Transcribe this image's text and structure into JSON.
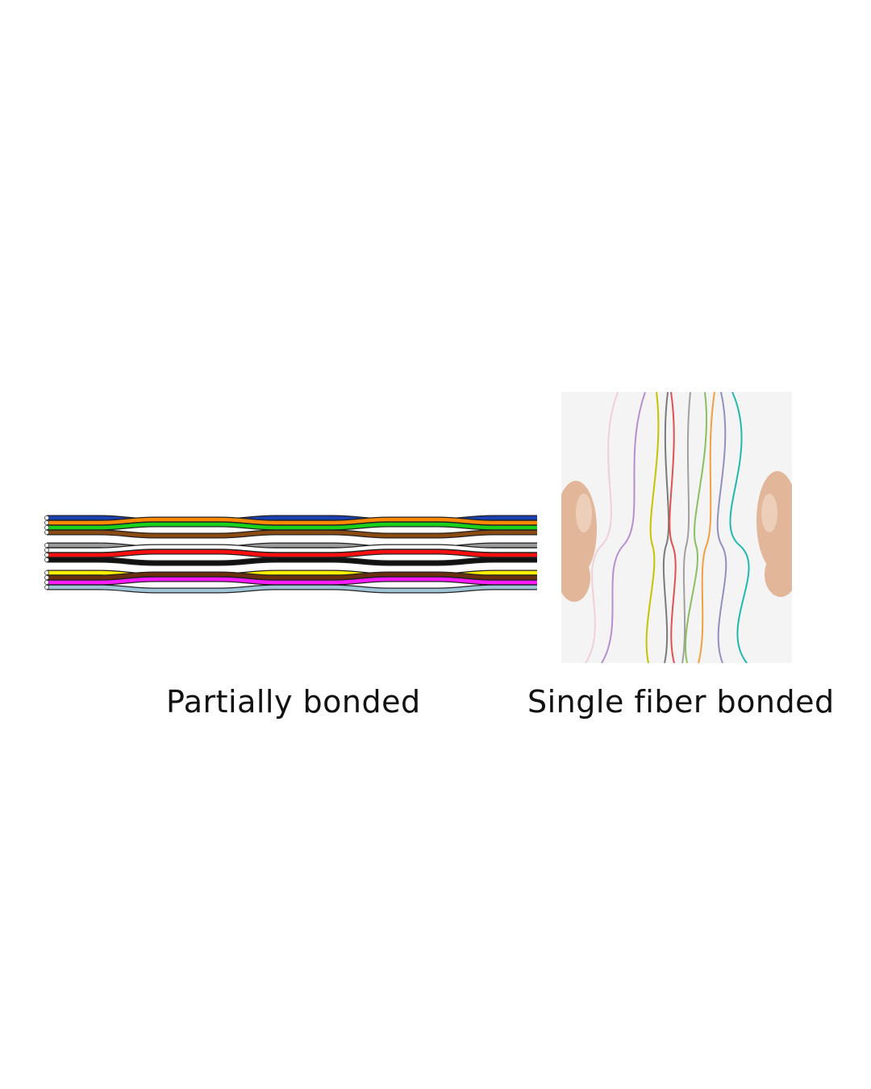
{
  "panels": {
    "partial": {
      "caption": "Partially bonded",
      "fiber_colors": [
        "#1a3fb0",
        "#ff8a00",
        "#19d11a",
        "#8a4a12",
        "#9a9a9a",
        "#ffffff",
        "#ff1010",
        "#111111",
        "#ffee00",
        "#6b2f10",
        "#ff1aff",
        "#9ec4d6"
      ]
    },
    "single": {
      "caption": "Single fiber bonded",
      "fiber_colors": [
        "#f0d0d8",
        "#b58fd0",
        "#c4c400",
        "#7a7a7a",
        "#e05050",
        "#a0a0a0",
        "#88c060",
        "#f0a040",
        "#20b8b0",
        "#9090c0"
      ],
      "skin_color": "#e2b698",
      "background_color": "#f4f4f4"
    }
  }
}
